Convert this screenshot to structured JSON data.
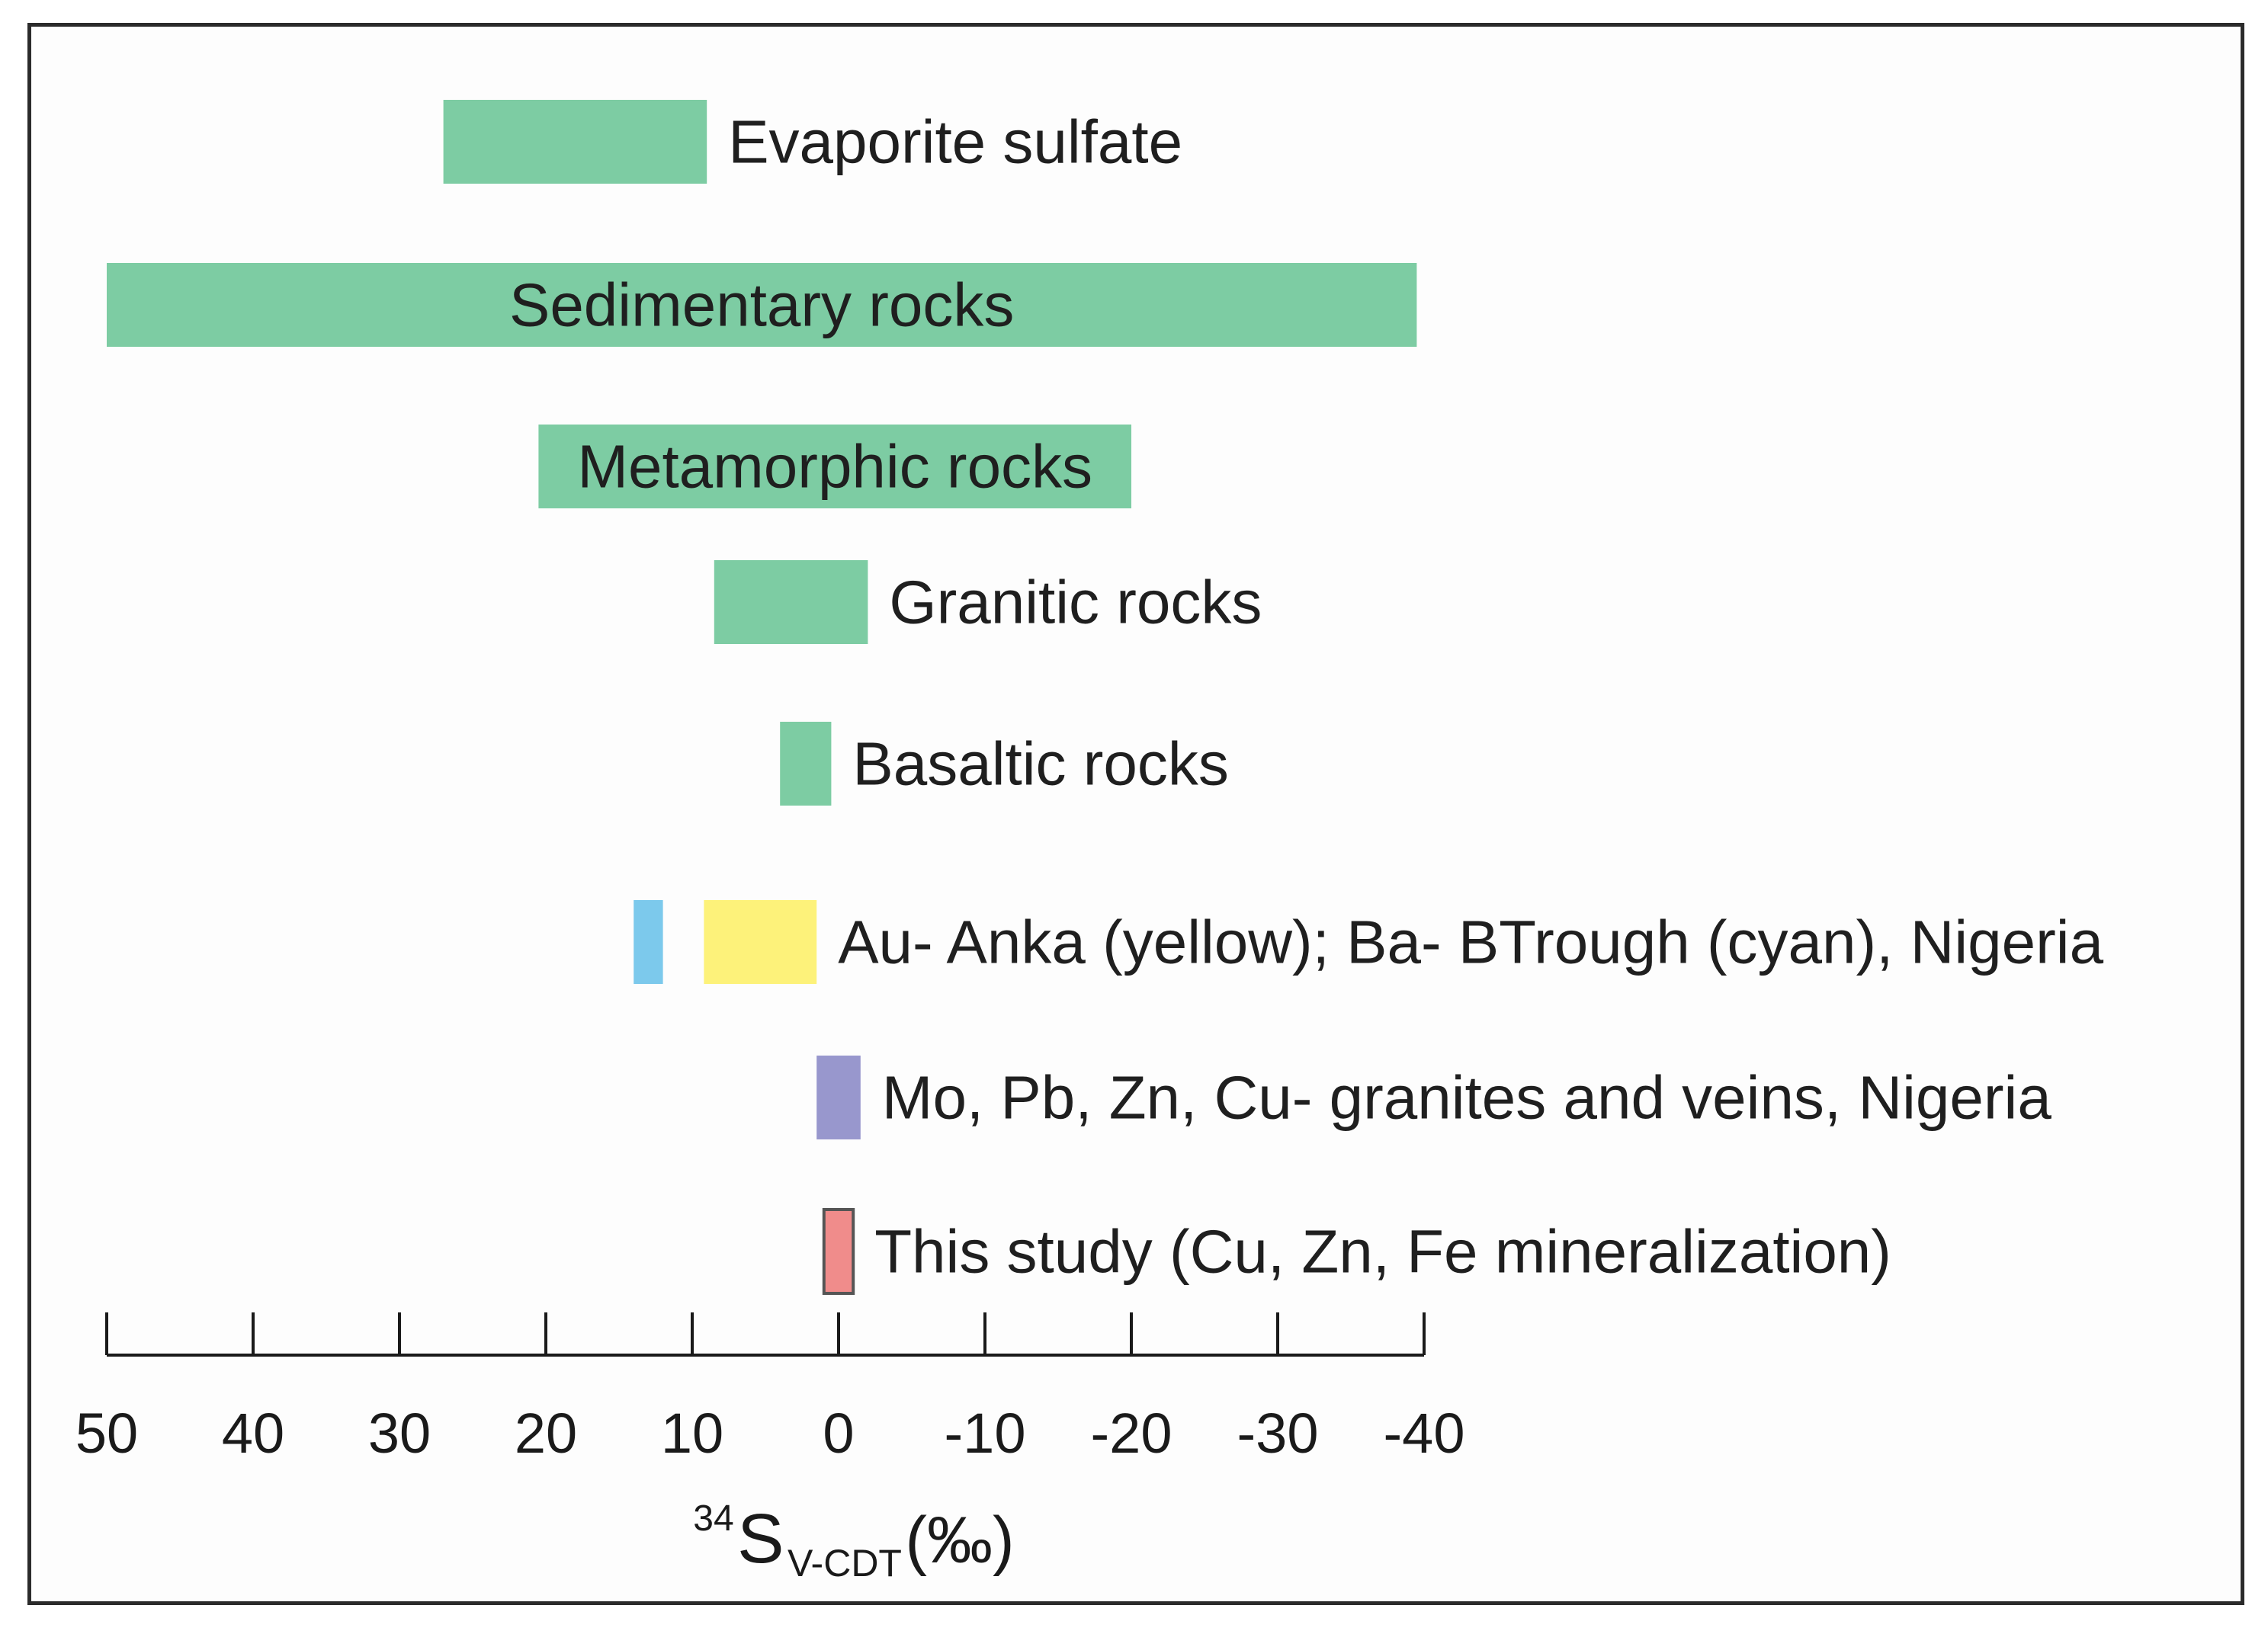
{
  "chart_data": {
    "type": "range-bar",
    "xlabel": {
      "superscript": "34",
      "main": "S",
      "subscript": "V-CDT",
      "unit": " (‰)"
    },
    "xlim": [
      50,
      -40
    ],
    "xticks": [
      50,
      40,
      30,
      20,
      10,
      0,
      -10,
      -20,
      -30,
      -40
    ],
    "xtick_labels": [
      "50",
      "40",
      "30",
      "20",
      "10",
      "0",
      "-10",
      "-20",
      "-30",
      "-40"
    ],
    "rows": [
      {
        "label": "Evaporite sulfate",
        "label_position": "right",
        "ranges": [
          {
            "from": 27,
            "to": 9,
            "color": "#7dcca3"
          }
        ]
      },
      {
        "label": "Sedimentary rocks",
        "label_position": "inside",
        "ranges": [
          {
            "from": 50,
            "to": -39.5,
            "color": "#7dcca3"
          }
        ]
      },
      {
        "label": "Metamorphic rocks",
        "label_position": "inside",
        "ranges": [
          {
            "from": 20.5,
            "to": -20,
            "color": "#7dcca3"
          }
        ]
      },
      {
        "label": "Granitic rocks",
        "label_position": "right",
        "ranges": [
          {
            "from": 8.5,
            "to": -2,
            "color": "#7dcca3"
          }
        ]
      },
      {
        "label": "Basaltic rocks",
        "label_position": "right",
        "ranges": [
          {
            "from": 4,
            "to": 0.5,
            "color": "#7dcca3"
          }
        ]
      },
      {
        "label": "Au- Anka (yellow); Ba- BTrough (cyan), Nigeria",
        "label_position": "right",
        "ranges": [
          {
            "from": 14,
            "to": 12,
            "color": "#7cc9ec"
          },
          {
            "from": 9.2,
            "to": 1.5,
            "color": "#fdf27a"
          }
        ]
      },
      {
        "label": "Mo, Pb, Zn, Cu- granites and veins, Nigeria",
        "label_position": "right",
        "ranges": [
          {
            "from": 1.5,
            "to": -1.5,
            "color": "#9897cd"
          }
        ]
      },
      {
        "label": "This study (Cu, Zn, Fe mineralization)",
        "label_position": "right",
        "ranges": [
          {
            "from": 1,
            "to": -1,
            "color": "#f08c8b",
            "outlined": true
          }
        ]
      }
    ]
  }
}
